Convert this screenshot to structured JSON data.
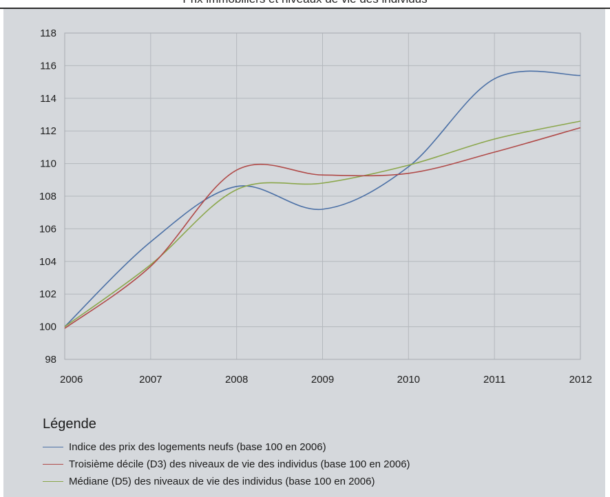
{
  "header": {
    "cut_title": "Prix immobiliers et niveaux de vie des individus"
  },
  "chart_data": {
    "type": "line",
    "x": [
      2006,
      2007,
      2008,
      2009,
      2010,
      2011,
      2012
    ],
    "xlim": [
      2006,
      2012
    ],
    "ylim": [
      98,
      118
    ],
    "yticks": [
      98,
      100,
      102,
      104,
      106,
      108,
      110,
      112,
      114,
      116,
      118
    ],
    "xticks": [
      "2006",
      "2007",
      "2008",
      "2009",
      "2010",
      "2011",
      "2012"
    ],
    "grid": true,
    "legend_title": "Légende",
    "legend_position": "bottom",
    "series": [
      {
        "name": "Indice des prix des logements neufs (base 100 en 2006)",
        "color": "#4a6fa5",
        "points": [
          [
            2006,
            100.0
          ],
          [
            2007,
            105.2
          ],
          [
            2008,
            108.6
          ],
          [
            2009,
            107.2
          ],
          [
            2010,
            109.8
          ],
          [
            2011,
            115.2
          ],
          [
            2012,
            115.4
          ]
        ]
      },
      {
        "name": "Troisième décile (D3) des niveaux de vie des individus (base 100 en 2006)",
        "color": "#b04a48",
        "points": [
          [
            2006,
            99.9
          ],
          [
            2007,
            103.7
          ],
          [
            2008,
            109.6
          ],
          [
            2009,
            109.3
          ],
          [
            2010,
            109.4
          ],
          [
            2011,
            110.7
          ],
          [
            2012,
            112.2
          ]
        ]
      },
      {
        "name": "Médiane (D5) des niveaux de vie des individus (base 100 en 2006)",
        "color": "#8aa64a",
        "points": [
          [
            2006,
            100.0
          ],
          [
            2007,
            103.8
          ],
          [
            2008,
            108.4
          ],
          [
            2009,
            108.8
          ],
          [
            2010,
            109.9
          ],
          [
            2011,
            111.5
          ],
          [
            2012,
            112.6
          ]
        ]
      }
    ]
  }
}
